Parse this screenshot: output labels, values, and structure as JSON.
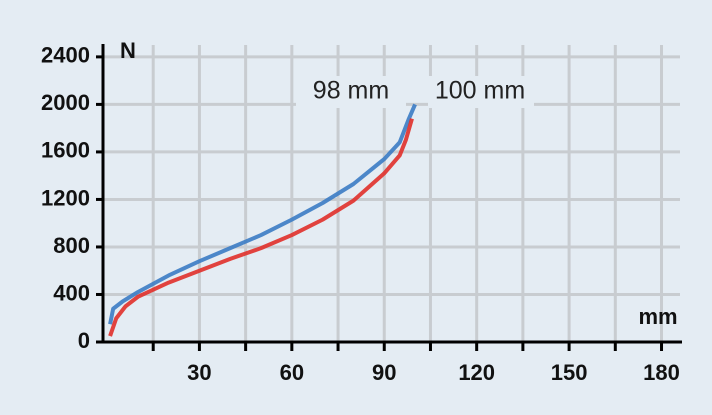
{
  "chart_data": {
    "type": "line",
    "y_label": "N",
    "x_label": "mm",
    "annotations": [
      "98 mm",
      "100 mm"
    ],
    "xlim": [
      0,
      186
    ],
    "xticks": [
      30,
      60,
      90,
      120,
      150,
      180
    ],
    "xminor": [
      15,
      45,
      75,
      105,
      135,
      165
    ],
    "ylim": [
      0,
      2500
    ],
    "yticks": [
      0,
      400,
      800,
      1200,
      1600,
      2000,
      2400
    ],
    "grid": true,
    "series": [
      {
        "name": "98 mm",
        "color": "#3b7cc4",
        "x": [
          1,
          2,
          5,
          10,
          20,
          30,
          40,
          50,
          60,
          70,
          80,
          90,
          95,
          98,
          100
        ],
        "values": [
          150,
          280,
          340,
          420,
          560,
          680,
          790,
          900,
          1030,
          1170,
          1330,
          1540,
          1680,
          1880,
          2000
        ]
      },
      {
        "name": "100 mm",
        "color": "#e0302a",
        "x": [
          1,
          3,
          6,
          10,
          20,
          30,
          40,
          50,
          60,
          70,
          80,
          90,
          95,
          97,
          99
        ],
        "values": [
          50,
          200,
          300,
          380,
          500,
          600,
          700,
          790,
          900,
          1030,
          1190,
          1420,
          1570,
          1700,
          1880
        ]
      }
    ]
  }
}
